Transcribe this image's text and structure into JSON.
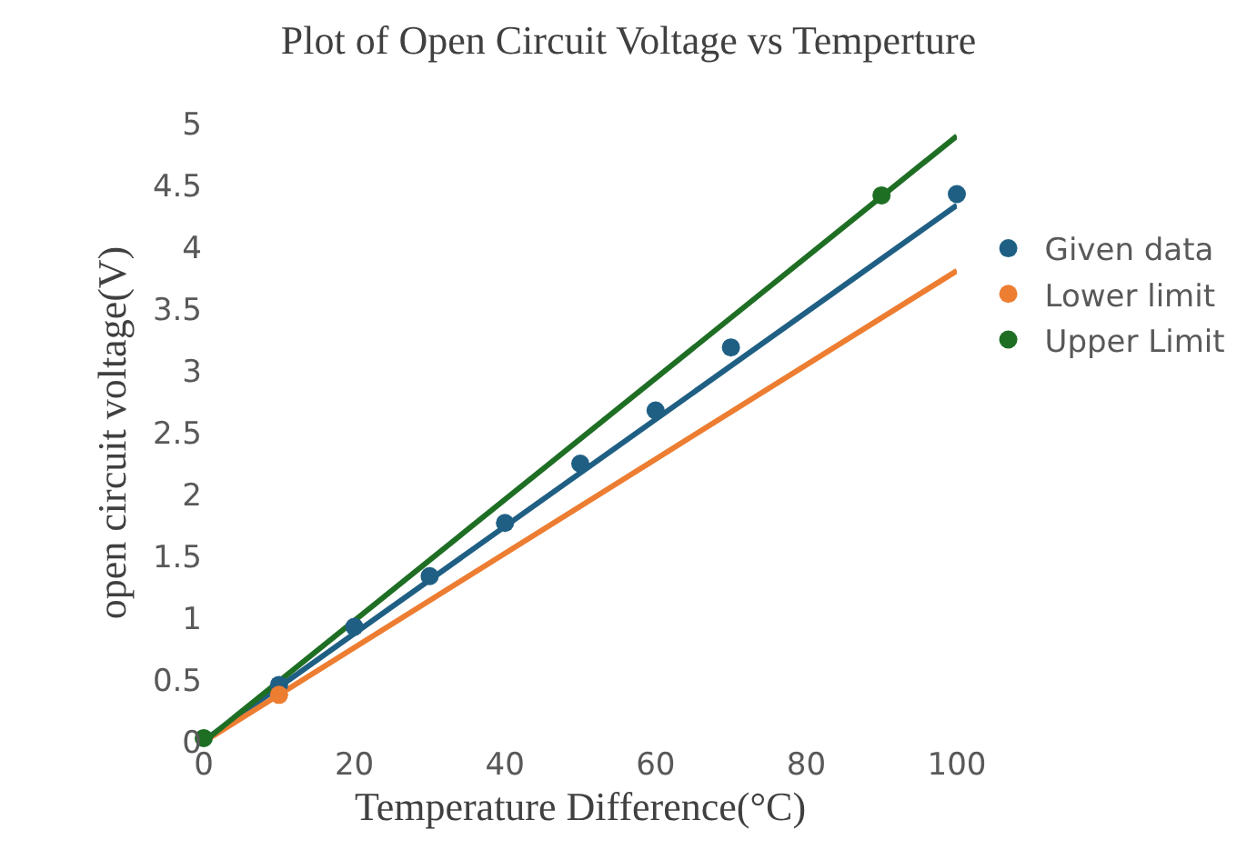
{
  "chart_data": {
    "type": "scatter",
    "title": "Plot of Open Circuit Voltage vs Temperture",
    "xlabel": "Temperature Difference(°C)",
    "ylabel": "open circuit voltage(V)",
    "xlim": [
      0,
      100
    ],
    "xticks": [
      0,
      20,
      40,
      60,
      80,
      100
    ],
    "ylim": [
      0,
      5
    ],
    "yticks": [
      0,
      0.5,
      1,
      1.5,
      2,
      2.5,
      3,
      3.5,
      4,
      4.5,
      5
    ],
    "grid": false,
    "legend": "right",
    "series": [
      {
        "name": "Given data",
        "marker": "circle",
        "color": "#1f5f84",
        "x": [
          10,
          20,
          30,
          40,
          50,
          60,
          70,
          100
        ],
        "values": [
          0.46,
          0.93,
          1.34,
          1.77,
          2.25,
          2.68,
          3.19,
          4.43
        ]
      },
      {
        "name": "Lower limit",
        "marker": "circle",
        "color": "#ed7d31",
        "x": [
          10
        ],
        "values": [
          0.38
        ]
      },
      {
        "name": "Upper Limit",
        "marker": "circle",
        "color": "#1e6e24",
        "x": [
          0,
          90
        ],
        "values": [
          0.03,
          4.42
        ]
      },
      {
        "type": "line",
        "marker": "none",
        "color": "#1f5f84",
        "x": [
          0,
          100
        ],
        "values": [
          0.01,
          4.34
        ]
      },
      {
        "type": "line",
        "marker": "none",
        "color": "#ed7d31",
        "x": [
          0,
          100
        ],
        "values": [
          0,
          3.81
        ]
      },
      {
        "type": "line",
        "marker": "none",
        "color": "#1e6e24",
        "x": [
          0,
          100
        ],
        "values": [
          0,
          4.9
        ]
      }
    ]
  }
}
